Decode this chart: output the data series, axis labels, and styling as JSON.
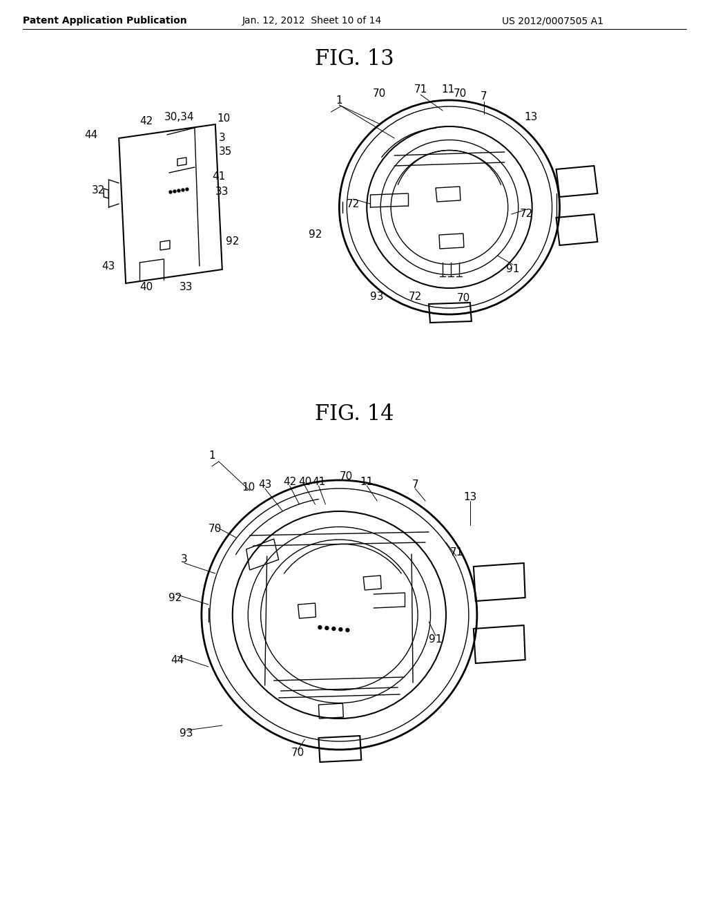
{
  "header_left": "Patent Application Publication",
  "header_mid": "Jan. 12, 2012  Sheet 10 of 14",
  "header_right": "US 2012/0007505 A1",
  "fig13_title": "FIG. 13",
  "fig14_title": "FIG. 14",
  "bg_color": "#ffffff",
  "line_color": "#000000",
  "text_color": "#000000",
  "header_fontsize": 10,
  "title_fontsize": 22,
  "label_fontsize": 11
}
